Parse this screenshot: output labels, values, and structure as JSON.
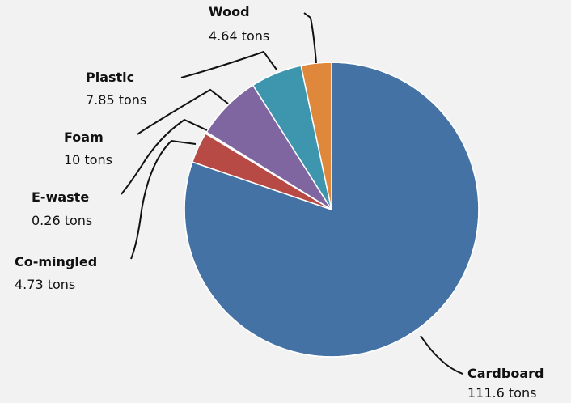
{
  "chart_data": {
    "type": "pie",
    "title": "",
    "start": "12 o'clock",
    "direction": "clockwise",
    "slices": [
      {
        "label": "Cardboard",
        "value": 111.6,
        "value_label": "111.6 tons",
        "color": "#4472a4"
      },
      {
        "label": "Co-mingled",
        "value": 4.73,
        "value_label": "4.73 tons",
        "color": "#b84a46"
      },
      {
        "label": "E-waste",
        "value": 0.26,
        "value_label": "0.26 tons",
        "color": "#e8e8e8"
      },
      {
        "label": "Foam",
        "value": 10,
        "value_label": "10 tons",
        "color": "#8066a1"
      },
      {
        "label": "Plastic",
        "value": 7.85,
        "value_label": "7.85 tons",
        "color": "#3d96ae"
      },
      {
        "label": "Wood",
        "value": 4.64,
        "value_label": "4.64 tons",
        "color": "#df873b"
      }
    ]
  }
}
